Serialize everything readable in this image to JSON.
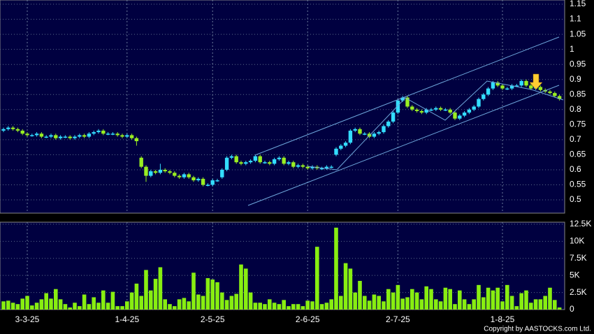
{
  "chart_data": {
    "type": "candlestick",
    "categories": [
      null,
      null,
      null,
      null,
      null,
      "3-3-25",
      null,
      null,
      null,
      null,
      null,
      null,
      null,
      null,
      null,
      null,
      null,
      null,
      null,
      null,
      null,
      null,
      null,
      null,
      null,
      null,
      "1-4-25",
      null,
      null,
      null,
      null,
      null,
      null,
      null,
      null,
      null,
      null,
      null,
      null,
      null,
      null,
      null,
      null,
      null,
      "2-5-25",
      null,
      null,
      null,
      null,
      null,
      null,
      null,
      null,
      null,
      null,
      null,
      null,
      null,
      null,
      null,
      null,
      null,
      null,
      null,
      "2-6-25",
      null,
      null,
      null,
      null,
      null,
      null,
      null,
      null,
      null,
      null,
      null,
      null,
      null,
      null,
      null,
      null,
      null,
      null,
      "2-7-25",
      null,
      null,
      null,
      null,
      null,
      null,
      null,
      null,
      null,
      null,
      null,
      null,
      null,
      null,
      null,
      null,
      null,
      null,
      null,
      null,
      null,
      "1-8-25",
      null,
      null,
      null,
      null,
      null,
      null,
      null,
      null,
      null,
      null,
      null,
      null
    ],
    "open": [
      0.73,
      0.735,
      0.74,
      0.735,
      0.73,
      0.72,
      0.715,
      0.715,
      0.72,
      0.71,
      0.71,
      0.715,
      0.705,
      0.71,
      0.71,
      0.705,
      0.71,
      0.715,
      0.71,
      0.72,
      0.725,
      0.73,
      0.72,
      0.72,
      0.72,
      0.715,
      0.71,
      0.715,
      0.705,
      0.64,
      0.61,
      0.58,
      0.595,
      0.59,
      0.6,
      0.595,
      0.59,
      0.58,
      0.575,
      0.585,
      0.575,
      0.565,
      0.57,
      0.55,
      0.55,
      0.565,
      0.575,
      0.6,
      0.64,
      0.645,
      0.625,
      0.62,
      0.625,
      0.63,
      0.645,
      0.625,
      0.625,
      0.62,
      0.635,
      0.64,
      0.62,
      0.625,
      0.61,
      0.615,
      0.61,
      0.605,
      0.61,
      0.605,
      0.605,
      0.61,
      0.65,
      0.67,
      0.68,
      0.69,
      0.73,
      0.735,
      0.72,
      0.72,
      0.71,
      0.72,
      0.725,
      0.745,
      0.76,
      0.79,
      0.83,
      0.84,
      0.81,
      0.8,
      0.795,
      0.79,
      0.8,
      0.8,
      0.805,
      0.8,
      0.8,
      0.79,
      0.77,
      0.78,
      0.79,
      0.8,
      0.81,
      0.835,
      0.85,
      0.87,
      0.89,
      0.88,
      0.87,
      0.87,
      0.88,
      0.88,
      0.895,
      0.88,
      0.87,
      0.875,
      0.865,
      0.86,
      0.855,
      0.845
    ],
    "high": [
      0.74,
      0.745,
      0.745,
      0.74,
      0.735,
      0.725,
      0.72,
      0.725,
      0.725,
      0.715,
      0.72,
      0.72,
      0.715,
      0.715,
      0.715,
      0.715,
      0.72,
      0.72,
      0.725,
      0.73,
      0.735,
      0.735,
      0.725,
      0.725,
      0.725,
      0.72,
      0.72,
      0.72,
      0.71,
      0.645,
      0.615,
      0.6,
      0.6,
      0.62,
      0.605,
      0.6,
      0.595,
      0.585,
      0.59,
      0.59,
      0.58,
      0.575,
      0.575,
      0.555,
      0.57,
      0.57,
      0.605,
      0.645,
      0.65,
      0.65,
      0.63,
      0.63,
      0.635,
      0.65,
      0.65,
      0.63,
      0.63,
      0.64,
      0.645,
      0.645,
      0.63,
      0.63,
      0.62,
      0.62,
      0.615,
      0.615,
      0.615,
      0.61,
      0.615,
      0.615,
      0.675,
      0.685,
      0.695,
      0.735,
      0.74,
      0.74,
      0.725,
      0.725,
      0.725,
      0.73,
      0.75,
      0.765,
      0.795,
      0.835,
      0.845,
      0.845,
      0.815,
      0.805,
      0.8,
      0.805,
      0.805,
      0.81,
      0.81,
      0.805,
      0.805,
      0.795,
      0.785,
      0.795,
      0.805,
      0.815,
      0.84,
      0.855,
      0.875,
      0.895,
      0.895,
      0.885,
      0.875,
      0.885,
      0.885,
      0.9,
      0.9,
      0.885,
      0.88,
      0.88,
      0.87,
      0.865,
      0.86,
      0.85
    ],
    "low": [
      0.725,
      0.73,
      0.73,
      0.725,
      0.715,
      0.71,
      0.71,
      0.71,
      0.705,
      0.705,
      0.705,
      0.7,
      0.7,
      0.705,
      0.7,
      0.7,
      0.705,
      0.705,
      0.705,
      0.715,
      0.72,
      0.715,
      0.715,
      0.715,
      0.71,
      0.705,
      0.705,
      0.7,
      0.68,
      0.605,
      0.56,
      0.575,
      0.585,
      0.585,
      0.59,
      0.585,
      0.575,
      0.57,
      0.57,
      0.57,
      0.56,
      0.56,
      0.545,
      0.545,
      0.545,
      0.56,
      0.57,
      0.595,
      0.635,
      0.62,
      0.615,
      0.615,
      0.62,
      0.625,
      0.62,
      0.62,
      0.615,
      0.615,
      0.63,
      0.615,
      0.615,
      0.605,
      0.605,
      0.605,
      0.6,
      0.6,
      0.6,
      0.6,
      0.6,
      0.605,
      0.645,
      0.665,
      0.675,
      0.685,
      0.725,
      0.715,
      0.715,
      0.705,
      0.705,
      0.715,
      0.72,
      0.74,
      0.755,
      0.785,
      0.825,
      0.805,
      0.795,
      0.79,
      0.785,
      0.785,
      0.795,
      0.795,
      0.795,
      0.795,
      0.785,
      0.765,
      0.765,
      0.775,
      0.785,
      0.795,
      0.805,
      0.83,
      0.845,
      0.865,
      0.875,
      0.865,
      0.865,
      0.865,
      0.875,
      0.875,
      0.875,
      0.865,
      0.865,
      0.86,
      0.855,
      0.85,
      0.84,
      0.83
    ],
    "close": [
      0.735,
      0.74,
      0.735,
      0.73,
      0.72,
      0.715,
      0.715,
      0.72,
      0.71,
      0.71,
      0.715,
      0.705,
      0.71,
      0.71,
      0.705,
      0.71,
      0.715,
      0.71,
      0.72,
      0.725,
      0.73,
      0.72,
      0.72,
      0.72,
      0.715,
      0.71,
      0.715,
      0.705,
      0.695,
      0.61,
      0.58,
      0.595,
      0.59,
      0.6,
      0.595,
      0.59,
      0.58,
      0.575,
      0.585,
      0.575,
      0.565,
      0.57,
      0.55,
      0.55,
      0.565,
      0.565,
      0.6,
      0.64,
      0.645,
      0.625,
      0.62,
      0.625,
      0.63,
      0.645,
      0.625,
      0.625,
      0.62,
      0.635,
      0.64,
      0.62,
      0.625,
      0.61,
      0.615,
      0.61,
      0.605,
      0.61,
      0.605,
      0.605,
      0.61,
      0.61,
      0.67,
      0.68,
      0.69,
      0.73,
      0.735,
      0.72,
      0.72,
      0.71,
      0.72,
      0.725,
      0.745,
      0.76,
      0.79,
      0.83,
      0.84,
      0.81,
      0.8,
      0.795,
      0.79,
      0.8,
      0.8,
      0.805,
      0.8,
      0.8,
      0.79,
      0.77,
      0.78,
      0.79,
      0.8,
      0.81,
      0.835,
      0.85,
      0.87,
      0.89,
      0.88,
      0.87,
      0.87,
      0.88,
      0.88,
      0.895,
      0.88,
      0.87,
      0.875,
      0.865,
      0.86,
      0.855,
      0.845,
      0.835
    ],
    "volume": [
      1200,
      1300,
      1000,
      800,
      1600,
      2000,
      600,
      1000,
      1500,
      2400,
      1600,
      3000,
      1500,
      800,
      300,
      1000,
      500,
      2200,
      800,
      1800,
      1000,
      2800,
      1000,
      2600,
      500,
      500,
      1200,
      2500,
      3800,
      2000,
      5800,
      2800,
      4500,
      6200,
      1500,
      800,
      500,
      1500,
      1700,
      1200,
      5400,
      2200,
      2000,
      4600,
      4400,
      4000,
      2500,
      1400,
      2000,
      2300,
      6600,
      6000,
      2500,
      1000,
      1000,
      800,
      1500,
      1000,
      800,
      1400,
      500,
      800,
      800,
      500,
      1300,
      1200,
      9200,
      800,
      1000,
      1500,
      12000,
      2000,
      6800,
      6000,
      2500,
      4200,
      2000,
      1300,
      2200,
      2000,
      1200,
      3000,
      2500,
      3600,
      1600,
      1800,
      3000,
      2500,
      1500,
      3400,
      3000,
      1500,
      1200,
      3200,
      3000,
      800,
      2800,
      1500,
      800,
      1500,
      3600,
      1800,
      3200,
      2800,
      3200,
      1200,
      3600,
      2000,
      500,
      2400,
      2800,
      1000,
      1500,
      1500,
      2000,
      3200,
      1400,
      300
    ],
    "up_color": "#33ddff",
    "down_color": "#99ee22",
    "volume_color": "#88ee11",
    "ylim": [
      0.456,
      1.164
    ],
    "yticks": [
      0.5,
      0.55,
      0.6,
      0.65,
      0.7,
      0.75,
      0.8,
      0.85,
      0.9,
      0.95,
      1,
      1.05,
      1.1,
      1.15
    ],
    "volume_ylim": [
      0,
      12800
    ],
    "volume_yticks": [
      {
        "value": 12500,
        "label": "12.5K"
      },
      {
        "value": 10000,
        "label": "10K"
      },
      {
        "value": 7500,
        "label": "7.5K"
      },
      {
        "value": 5000,
        "label": "5K"
      },
      {
        "value": 2500,
        "label": "2.5K"
      },
      0
    ],
    "grid": true,
    "copyright": "Copyright by AASTOCKS.com Ltd."
  }
}
